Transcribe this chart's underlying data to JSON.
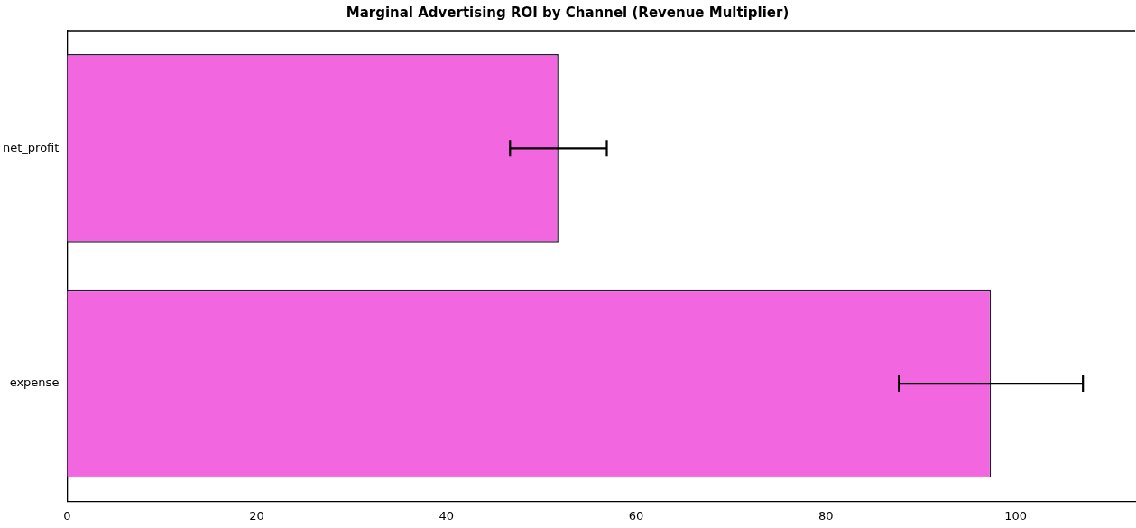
{
  "chart_data": {
    "type": "bar",
    "orientation": "horizontal",
    "title": "Marginal Advertising ROI by Channel (Revenue Multiplier)",
    "categories": [
      "net_profit",
      "expense"
    ],
    "values": [
      51.8,
      97.4
    ],
    "errors": [
      5.1,
      9.7
    ],
    "color": "#f266e0",
    "xlim": [
      0,
      112.6
    ],
    "xticks": [
      0,
      20,
      40,
      60,
      80,
      100
    ],
    "grid": false,
    "legend": false
  }
}
